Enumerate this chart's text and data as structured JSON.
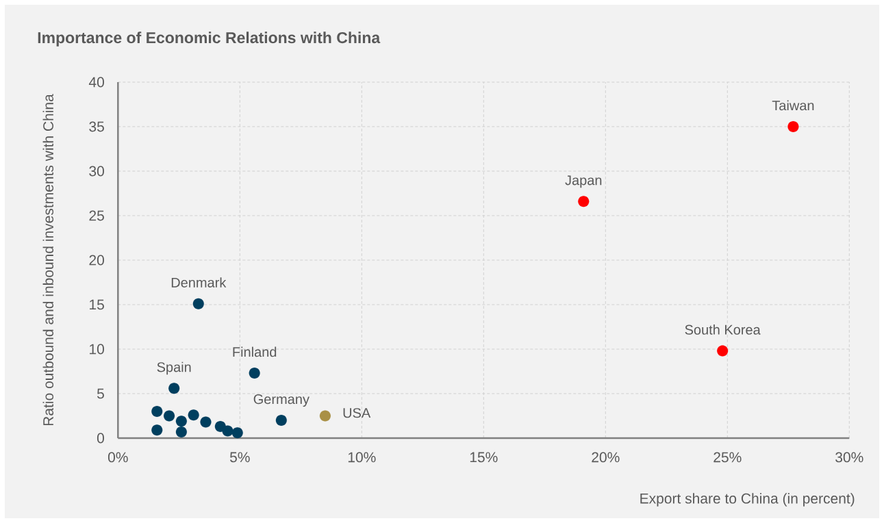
{
  "chart_data": {
    "type": "scatter",
    "title": "Importance of Economic Relations with China",
    "xlabel": "Export share to China (in percent)",
    "ylabel": "Ratio outbound and inbound investments with China",
    "series": [
      {
        "color": "#003f5f",
        "x": [
          1.6,
          1.6,
          2.1,
          2.3,
          2.6,
          2.6,
          3.1,
          3.3,
          3.6,
          4.2,
          4.5,
          4.9,
          5.6,
          6.7
        ],
        "values": [
          3.0,
          0.9,
          2.5,
          5.6,
          1.9,
          0.7,
          2.6,
          15.1,
          1.8,
          1.3,
          0.8,
          0.6,
          7.3,
          2.0
        ]
      },
      {
        "color": "#a99045",
        "x": [
          8.5
        ],
        "values": [
          2.5
        ]
      },
      {
        "color": "#ff0000",
        "x": [
          19.1,
          24.8,
          27.7
        ],
        "values": [
          26.6,
          9.8,
          35.0
        ]
      }
    ],
    "xlim": [
      0,
      30
    ],
    "ylim": [
      0,
      40
    ],
    "xticks": [
      {
        "value": 0,
        "label": "0%"
      },
      {
        "value": 5,
        "label": "5%"
      },
      {
        "value": 10,
        "label": "10%"
      },
      {
        "value": 15,
        "label": "15%"
      },
      {
        "value": 20,
        "label": "20%"
      },
      {
        "value": 25,
        "label": "25%"
      },
      {
        "value": 30,
        "label": "30%"
      }
    ],
    "yticks": [
      0,
      5,
      10,
      15,
      20,
      25,
      30,
      35,
      40
    ],
    "grid": true,
    "marker": "circle",
    "annotations": [
      {
        "text": "Denmark",
        "x": 3.3,
        "y": 15.1
      },
      {
        "text": "Spain",
        "x": 2.3,
        "y": 5.6
      },
      {
        "text": "Finland",
        "x": 5.6,
        "y": 7.3
      },
      {
        "text": "Germany",
        "x": 6.7,
        "y": 2.0
      },
      {
        "text": "USA",
        "x": 8.5,
        "y": 2.5
      },
      {
        "text": "Japan",
        "x": 19.1,
        "y": 26.6
      },
      {
        "text": "South Korea",
        "x": 24.8,
        "y": 9.8
      },
      {
        "text": "Taiwan",
        "x": 27.7,
        "y": 35.0
      }
    ]
  }
}
